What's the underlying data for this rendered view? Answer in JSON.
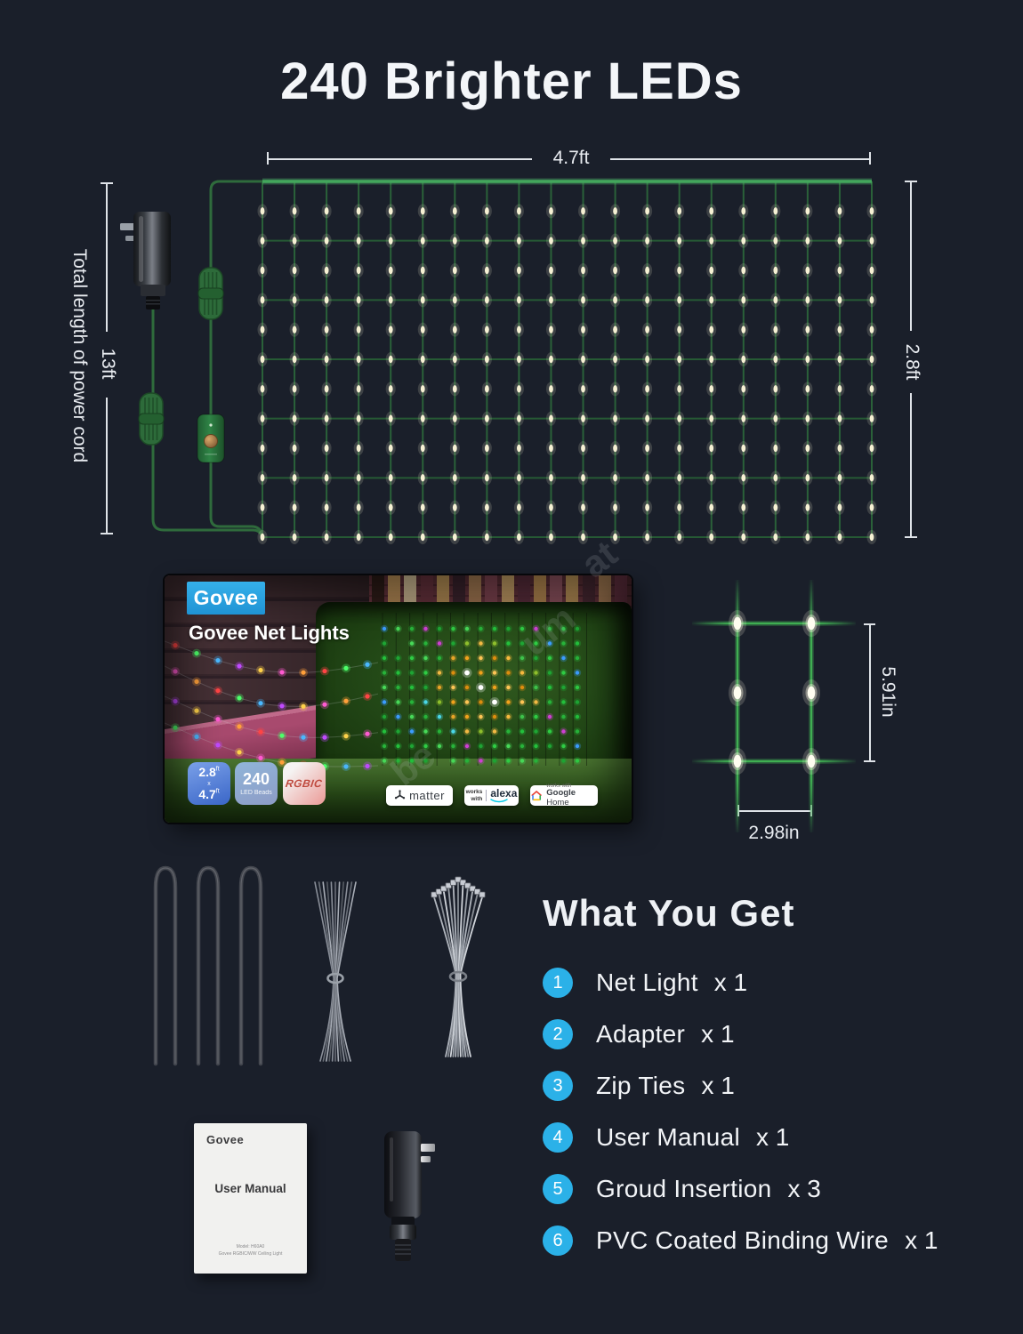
{
  "title": "240 Brighter LEDs",
  "dims": {
    "top": "4.7ft",
    "right": "2.8ft",
    "left": "13ft",
    "left_caption": "Total length of power cord",
    "cell_h": "5.91in",
    "cell_w": "2.98in"
  },
  "net": {
    "total_leds": 240,
    "columns": 20,
    "horizontal_wires": 7,
    "leds_per_column": 12
  },
  "box": {
    "brand": "Govee",
    "product_name": "Govee Net Lights",
    "badges": {
      "size": {
        "v1": "2.8",
        "u1": "ft",
        "x": "x",
        "v2": "4.7",
        "u2": "ft"
      },
      "beads": {
        "big": "240",
        "small": "LED Beads"
      },
      "rgbic": "RGBIC"
    },
    "pills": {
      "matter_label": "matter",
      "works": "works",
      "with": "with",
      "alexa_label": "alexa",
      "gh_prefix": "works with",
      "gh_brand": "Google",
      "gh_rest": " Home"
    }
  },
  "manual": {
    "brand": "Govee",
    "title": "User Manual",
    "model_line": "Model: H60A0",
    "product_line": "Govee RGBIC/WW Ceiling Light"
  },
  "what_you_get": {
    "heading": "What You Get",
    "items": [
      {
        "num": "1",
        "label": "Net Light",
        "qty": "x 1"
      },
      {
        "num": "2",
        "label": "Adapter",
        "qty": "x 1"
      },
      {
        "num": "3",
        "label": "Zip Ties",
        "qty": "x 1"
      },
      {
        "num": "4",
        "label": "User Manual",
        "qty": "x 1"
      },
      {
        "num": "5",
        "label": "Groud Insertion",
        "qty": "x 3"
      },
      {
        "num": "6",
        "label": "PVC Coated Binding Wire",
        "qty": "x 1"
      }
    ]
  },
  "watermark": [
    "be",
    "um",
    "at"
  ],
  "colors": {
    "background": "#1a1f2a",
    "accent_blue": "#2bb1e8",
    "govee_blue": "#2aa7e2",
    "wire_green": "#2f6b3c",
    "net_wire": "#2a6139",
    "led_warm": "#f6f1d4",
    "text": "#eef1f5"
  }
}
